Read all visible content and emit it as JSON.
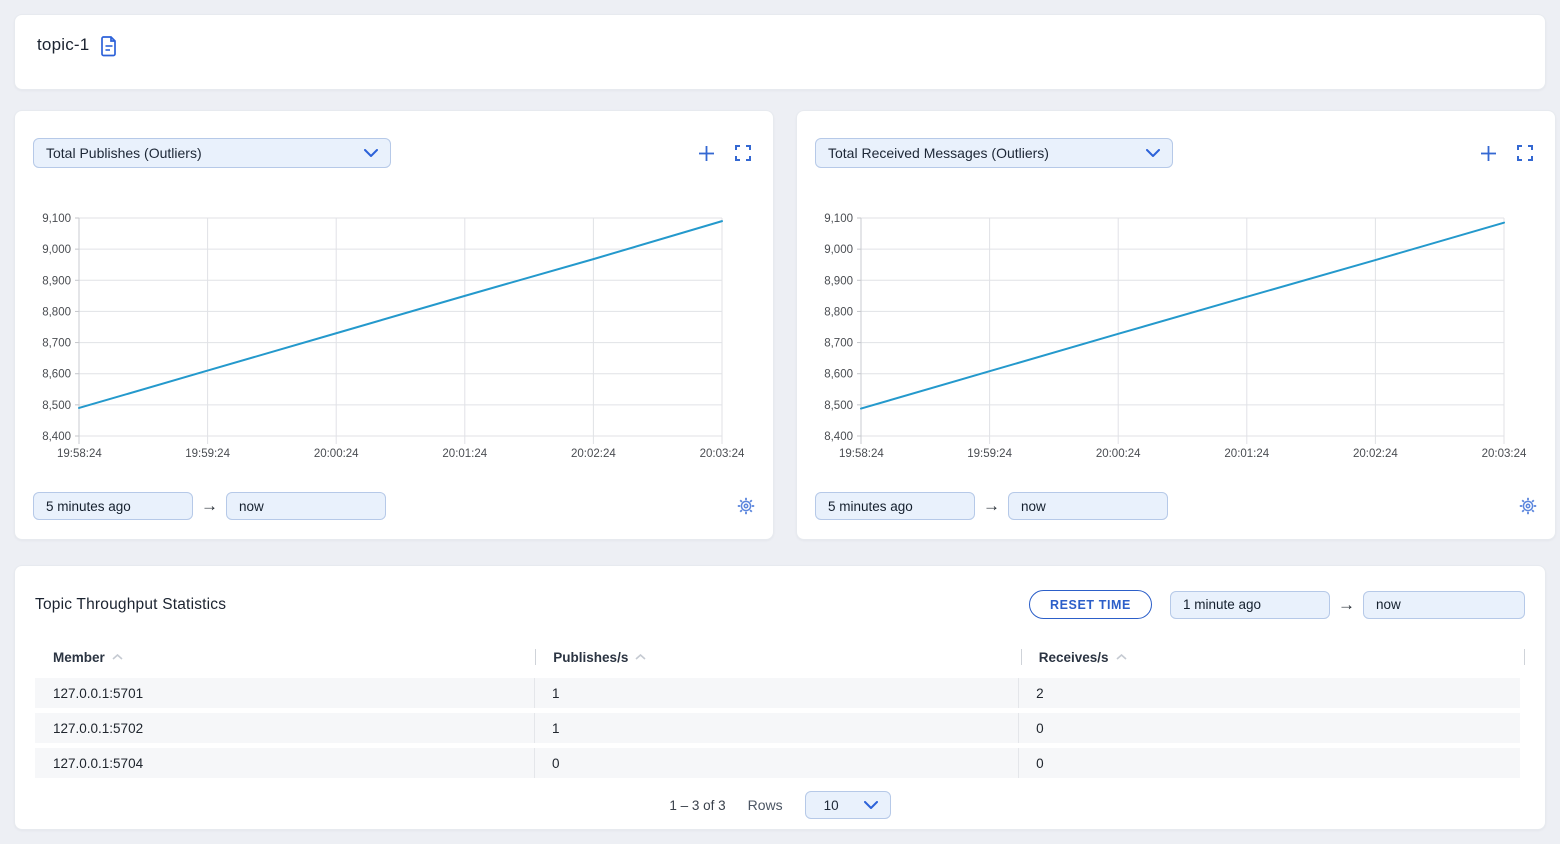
{
  "page": {
    "background": "#edeff4",
    "accent_blue": "#3468d2",
    "line_blue": "#2499cc"
  },
  "header": {
    "title": "topic-1",
    "icon": "document-icon"
  },
  "charts": [
    {
      "time_from": "5 minutes ago",
      "time_to": "now"
    },
    {
      "time_from": "5 minutes ago",
      "time_to": "now"
    }
  ],
  "chart_data": [
    {
      "type": "line",
      "title": "Total Publishes (Outliers)",
      "x": [
        "19:58:24",
        "19:59:24",
        "20:00:24",
        "20:01:24",
        "20:02:24",
        "20:03:24"
      ],
      "series": [
        {
          "name": "Total Publishes",
          "values": [
            8490,
            8610,
            8730,
            8850,
            8968,
            9090
          ]
        }
      ],
      "ylim": [
        8400,
        9100
      ],
      "yticks": [
        8400,
        8500,
        8600,
        8700,
        8800,
        8900,
        9000,
        9100
      ],
      "line_color": "#2499cc",
      "grid": true,
      "legend": false
    },
    {
      "type": "line",
      "title": "Total Received Messages (Outliers)",
      "x": [
        "19:58:24",
        "19:59:24",
        "20:00:24",
        "20:01:24",
        "20:02:24",
        "20:03:24"
      ],
      "series": [
        {
          "name": "Total Received Messages",
          "values": [
            8488,
            8608,
            8728,
            8847,
            8965,
            9085
          ]
        }
      ],
      "ylim": [
        8400,
        9100
      ],
      "yticks": [
        8400,
        8500,
        8600,
        8700,
        8800,
        8900,
        9000,
        9100
      ],
      "line_color": "#2499cc",
      "grid": true,
      "legend": false
    }
  ],
  "table_panel": {
    "title": "Topic Throughput Statistics",
    "reset_button": "RESET TIME",
    "time_from": "1 minute ago",
    "time_to": "now",
    "columns": [
      "Member",
      "Publishes/s",
      "Receives/s"
    ],
    "rows": [
      [
        "127.0.0.1:5701",
        "1",
        "2"
      ],
      [
        "127.0.0.1:5702",
        "1",
        "0"
      ],
      [
        "127.0.0.1:5704",
        "0",
        "0"
      ]
    ],
    "pagination": {
      "range": "1 – 3 of 3",
      "rows_label": "Rows",
      "page_size": "10"
    }
  },
  "misc": {
    "arrow": "→"
  }
}
